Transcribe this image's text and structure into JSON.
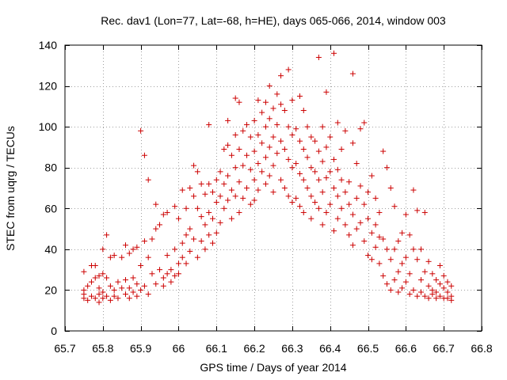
{
  "chart_data": {
    "type": "scatter",
    "title": "Rec. dav1 (Lon=77, Lat=-68, h=HE), days 065-066, 2014, window 003",
    "xlabel": "GPS time / Days of year 2014",
    "ylabel": "STEC from uqrg / TECUs",
    "xlim": [
      65.7,
      66.8
    ],
    "ylim": [
      0,
      140
    ],
    "xticks": [
      "65.7",
      "65.8",
      "65.9",
      "66",
      "66.1",
      "66.2",
      "66.3",
      "66.4",
      "66.5",
      "66.6",
      "66.7",
      "66.8"
    ],
    "yticks": [
      "0",
      "20",
      "40",
      "60",
      "80",
      "100",
      "120",
      "140"
    ],
    "grid": true,
    "marker": "plus",
    "color": "#cc0000",
    "series": [
      {
        "name": "STEC",
        "points": [
          [
            65.75,
            18
          ],
          [
            65.75,
            16
          ],
          [
            65.75,
            20
          ],
          [
            65.75,
            29
          ],
          [
            65.76,
            22
          ],
          [
            65.76,
            15
          ],
          [
            65.77,
            32
          ],
          [
            65.77,
            17
          ],
          [
            65.77,
            24
          ],
          [
            65.78,
            16
          ],
          [
            65.78,
            26
          ],
          [
            65.78,
            32
          ],
          [
            65.79,
            18
          ],
          [
            65.79,
            14
          ],
          [
            65.79,
            27
          ],
          [
            65.79,
            21
          ],
          [
            65.8,
            40
          ],
          [
            65.8,
            28
          ],
          [
            65.8,
            16
          ],
          [
            65.8,
            19
          ],
          [
            65.81,
            47
          ],
          [
            65.81,
            26
          ],
          [
            65.81,
            17
          ],
          [
            65.82,
            36
          ],
          [
            65.82,
            22
          ],
          [
            65.82,
            15
          ],
          [
            65.83,
            20
          ],
          [
            65.83,
            37
          ],
          [
            65.83,
            17
          ],
          [
            65.84,
            24
          ],
          [
            65.84,
            16
          ],
          [
            65.85,
            36
          ],
          [
            65.85,
            21
          ],
          [
            65.86,
            42
          ],
          [
            65.86,
            18
          ],
          [
            65.86,
            25
          ],
          [
            65.87,
            38
          ],
          [
            65.87,
            16
          ],
          [
            65.87,
            21
          ],
          [
            65.88,
            40
          ],
          [
            65.88,
            19
          ],
          [
            65.88,
            26
          ],
          [
            65.89,
            41
          ],
          [
            65.89,
            17
          ],
          [
            65.89,
            23
          ],
          [
            65.9,
            98
          ],
          [
            65.9,
            32
          ],
          [
            65.9,
            20
          ],
          [
            65.91,
            86
          ],
          [
            65.91,
            44
          ],
          [
            65.91,
            22
          ],
          [
            65.92,
            74
          ],
          [
            65.92,
            36
          ],
          [
            65.92,
            18
          ],
          [
            65.93,
            45
          ],
          [
            65.93,
            28
          ],
          [
            65.94,
            62
          ],
          [
            65.94,
            50
          ],
          [
            65.94,
            23
          ],
          [
            65.95,
            52
          ],
          [
            65.95,
            30
          ],
          [
            65.96,
            57
          ],
          [
            65.96,
            26
          ],
          [
            65.96,
            22
          ],
          [
            65.97,
            58
          ],
          [
            65.97,
            37
          ],
          [
            65.97,
            28
          ],
          [
            65.98,
            30
          ],
          [
            65.98,
            24
          ],
          [
            65.99,
            61
          ],
          [
            65.99,
            40
          ],
          [
            65.99,
            27
          ],
          [
            66.0,
            55
          ],
          [
            66.0,
            33
          ],
          [
            66.0,
            28
          ],
          [
            66.01,
            69
          ],
          [
            66.01,
            43
          ],
          [
            66.01,
            36
          ],
          [
            66.02,
            60
          ],
          [
            66.02,
            47
          ],
          [
            66.02,
            33
          ],
          [
            66.03,
            70
          ],
          [
            66.03,
            50
          ],
          [
            66.03,
            39
          ],
          [
            66.04,
            81
          ],
          [
            66.04,
            66
          ],
          [
            66.04,
            45
          ],
          [
            66.05,
            78
          ],
          [
            66.05,
            60
          ],
          [
            66.05,
            36
          ],
          [
            66.06,
            72
          ],
          [
            66.06,
            56
          ],
          [
            66.06,
            44
          ],
          [
            66.07,
            67
          ],
          [
            66.07,
            52
          ],
          [
            66.07,
            40
          ],
          [
            66.08,
            101
          ],
          [
            66.08,
            72
          ],
          [
            66.08,
            58
          ],
          [
            66.08,
            47
          ],
          [
            66.09,
            68
          ],
          [
            66.09,
            55
          ],
          [
            66.09,
            43
          ],
          [
            66.1,
            74
          ],
          [
            66.1,
            63
          ],
          [
            66.1,
            48
          ],
          [
            66.11,
            78
          ],
          [
            66.11,
            66
          ],
          [
            66.11,
            53
          ],
          [
            66.12,
            89
          ],
          [
            66.12,
            72
          ],
          [
            66.12,
            60
          ],
          [
            66.13,
            103
          ],
          [
            66.13,
            91
          ],
          [
            66.13,
            76
          ],
          [
            66.13,
            64
          ],
          [
            66.14,
            86
          ],
          [
            66.14,
            69
          ],
          [
            66.14,
            55
          ],
          [
            66.15,
            114
          ],
          [
            66.15,
            96
          ],
          [
            66.15,
            80
          ],
          [
            66.15,
            66
          ],
          [
            66.16,
            112
          ],
          [
            66.16,
            89
          ],
          [
            66.16,
            73
          ],
          [
            66.16,
            58
          ],
          [
            66.17,
            98
          ],
          [
            66.17,
            81
          ],
          [
            66.17,
            65
          ],
          [
            66.18,
            101
          ],
          [
            66.18,
            86
          ],
          [
            66.18,
            70
          ],
          [
            66.19,
            95
          ],
          [
            66.19,
            79
          ],
          [
            66.19,
            62
          ],
          [
            66.2,
            103
          ],
          [
            66.2,
            88
          ],
          [
            66.2,
            74
          ],
          [
            66.2,
            64
          ],
          [
            66.21,
            113
          ],
          [
            66.21,
            96
          ],
          [
            66.21,
            82
          ],
          [
            66.21,
            69
          ],
          [
            66.22,
            107
          ],
          [
            66.22,
            92
          ],
          [
            66.22,
            78
          ],
          [
            66.23,
            112
          ],
          [
            66.23,
            100
          ],
          [
            66.23,
            85
          ],
          [
            66.23,
            72
          ],
          [
            66.24,
            120
          ],
          [
            66.24,
            104
          ],
          [
            66.24,
            90
          ],
          [
            66.24,
            76
          ],
          [
            66.25,
            109
          ],
          [
            66.25,
            95
          ],
          [
            66.25,
            81
          ],
          [
            66.25,
            68
          ],
          [
            66.26,
            116
          ],
          [
            66.26,
            101
          ],
          [
            66.26,
            87
          ],
          [
            66.27,
            125
          ],
          [
            66.27,
            111
          ],
          [
            66.27,
            93
          ],
          [
            66.27,
            74
          ],
          [
            66.28,
            108
          ],
          [
            66.28,
            89
          ],
          [
            66.28,
            70
          ],
          [
            66.29,
            128
          ],
          [
            66.29,
            100
          ],
          [
            66.29,
            84
          ],
          [
            66.29,
            66
          ],
          [
            66.3,
            113
          ],
          [
            66.3,
            96
          ],
          [
            66.3,
            80
          ],
          [
            66.3,
            63
          ],
          [
            66.31,
            99
          ],
          [
            66.31,
            82
          ],
          [
            66.31,
            65
          ],
          [
            66.32,
            115
          ],
          [
            66.32,
            93
          ],
          [
            66.32,
            77
          ],
          [
            66.32,
            61
          ],
          [
            66.33,
            108
          ],
          [
            66.33,
            89
          ],
          [
            66.33,
            74
          ],
          [
            66.33,
            58
          ],
          [
            66.34,
            100
          ],
          [
            66.34,
            85
          ],
          [
            66.34,
            70
          ],
          [
            66.35,
            95
          ],
          [
            66.35,
            80
          ],
          [
            66.35,
            66
          ],
          [
            66.35,
            55
          ],
          [
            66.36,
            93
          ],
          [
            66.36,
            78
          ],
          [
            66.36,
            63
          ],
          [
            66.37,
            134
          ],
          [
            66.37,
            88
          ],
          [
            66.37,
            74
          ],
          [
            66.37,
            60
          ],
          [
            66.38,
            100
          ],
          [
            66.38,
            83
          ],
          [
            66.38,
            68
          ],
          [
            66.38,
            52
          ],
          [
            66.39,
            117
          ],
          [
            66.39,
            90
          ],
          [
            66.39,
            75
          ],
          [
            66.39,
            58
          ],
          [
            66.4,
            95
          ],
          [
            66.4,
            78
          ],
          [
            66.4,
            62
          ],
          [
            66.41,
            136
          ],
          [
            66.41,
            84
          ],
          [
            66.41,
            70
          ],
          [
            66.41,
            49
          ],
          [
            66.42,
            102
          ],
          [
            66.42,
            79
          ],
          [
            66.42,
            66
          ],
          [
            66.42,
            55
          ],
          [
            66.43,
            89
          ],
          [
            66.43,
            74
          ],
          [
            66.43,
            60
          ],
          [
            66.44,
            98
          ],
          [
            66.44,
            68
          ],
          [
            66.44,
            52
          ],
          [
            66.45,
            73
          ],
          [
            66.45,
            62
          ],
          [
            66.45,
            47
          ],
          [
            66.46,
            126
          ],
          [
            66.46,
            92
          ],
          [
            66.46,
            57
          ],
          [
            66.46,
            42
          ],
          [
            66.47,
            82
          ],
          [
            66.47,
            65
          ],
          [
            66.47,
            50
          ],
          [
            66.48,
            99
          ],
          [
            66.48,
            71
          ],
          [
            66.48,
            53
          ],
          [
            66.49,
            102
          ],
          [
            66.49,
            62
          ],
          [
            66.49,
            44
          ],
          [
            66.5,
            68
          ],
          [
            66.5,
            55
          ],
          [
            66.5,
            37
          ],
          [
            66.51,
            76
          ],
          [
            66.51,
            48
          ],
          [
            66.51,
            35
          ],
          [
            66.52,
            65
          ],
          [
            66.52,
            52
          ],
          [
            66.52,
            41
          ],
          [
            66.53,
            58
          ],
          [
            66.53,
            46
          ],
          [
            66.53,
            33
          ],
          [
            66.54,
            88
          ],
          [
            66.54,
            45
          ],
          [
            66.54,
            27
          ],
          [
            66.55,
            80
          ],
          [
            66.55,
            40
          ],
          [
            66.55,
            23
          ],
          [
            66.56,
            70
          ],
          [
            66.56,
            35
          ],
          [
            66.56,
            20
          ],
          [
            66.57,
            61
          ],
          [
            66.57,
            40
          ],
          [
            66.57,
            25
          ],
          [
            66.58,
            44
          ],
          [
            66.58,
            29
          ],
          [
            66.58,
            19
          ],
          [
            66.59,
            48
          ],
          [
            66.59,
            33
          ],
          [
            66.59,
            21
          ],
          [
            66.6,
            57
          ],
          [
            66.6,
            36
          ],
          [
            66.6,
            24
          ],
          [
            66.61,
            47
          ],
          [
            66.61,
            28
          ],
          [
            66.61,
            18
          ],
          [
            66.62,
            69
          ],
          [
            66.62,
            40
          ],
          [
            66.62,
            20
          ],
          [
            66.63,
            59
          ],
          [
            66.63,
            35
          ],
          [
            66.63,
            17
          ],
          [
            66.64,
            40
          ],
          [
            66.64,
            25
          ],
          [
            66.64,
            19
          ],
          [
            66.65,
            58
          ],
          [
            66.65,
            29
          ],
          [
            66.65,
            17
          ],
          [
            66.66,
            34
          ],
          [
            66.66,
            22
          ],
          [
            66.66,
            16
          ],
          [
            66.67,
            28
          ],
          [
            66.67,
            20
          ],
          [
            66.67,
            18
          ],
          [
            66.68,
            25
          ],
          [
            66.68,
            19
          ],
          [
            66.68,
            16
          ],
          [
            66.69,
            32
          ],
          [
            66.69,
            23
          ],
          [
            66.69,
            17
          ],
          [
            66.7,
            27
          ],
          [
            66.7,
            21
          ],
          [
            66.7,
            16
          ],
          [
            66.71,
            24
          ],
          [
            66.71,
            19
          ],
          [
            66.71,
            16
          ],
          [
            66.72,
            22
          ],
          [
            66.72,
            17
          ],
          [
            66.72,
            15
          ]
        ]
      }
    ]
  }
}
